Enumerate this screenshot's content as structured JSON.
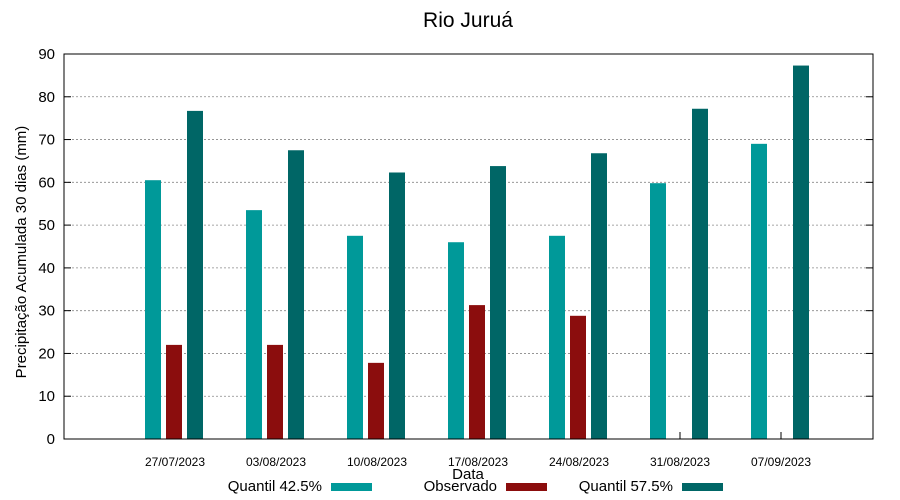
{
  "chart_data": {
    "type": "bar",
    "title": "Rio Juruá",
    "xlabel": "Data",
    "ylabel": "Precipitação Acumulada 30 dias (mm)",
    "ylim": [
      0,
      90
    ],
    "yticks": [
      0,
      10,
      20,
      30,
      40,
      50,
      60,
      70,
      80,
      90
    ],
    "grid": true,
    "legend_position": "bottom",
    "categories": [
      "27/07/2023",
      "03/08/2023",
      "10/08/2023",
      "17/08/2023",
      "24/08/2023",
      "31/08/2023",
      "07/09/2023"
    ],
    "series": [
      {
        "name": "Quantil 42.5%",
        "color": "#009999",
        "values": [
          60.5,
          53.5,
          47.5,
          46,
          47.5,
          59.8,
          69
        ]
      },
      {
        "name": "Observado",
        "color": "#8b0d0d",
        "values": [
          22,
          22,
          17.8,
          31.3,
          28.8,
          null,
          null
        ]
      },
      {
        "name": "Quantil 57.5%",
        "color": "#006666",
        "values": [
          76.7,
          67.5,
          62.3,
          63.8,
          66.8,
          77.2,
          87.3
        ]
      }
    ]
  }
}
